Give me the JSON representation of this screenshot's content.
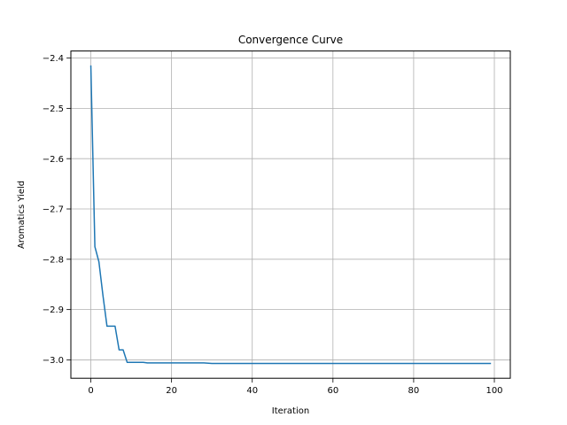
{
  "chart_data": {
    "type": "line",
    "title": "Convergence Curve",
    "xlabel": "Iteration",
    "ylabel": "Aromatics Yield",
    "xlim": [
      -4.95,
      103.95
    ],
    "ylim": [
      -3.0365,
      -2.386
    ],
    "xticks": [
      0,
      20,
      40,
      60,
      80,
      100
    ],
    "xtick_labels": [
      "0",
      "20",
      "40",
      "60",
      "80",
      "100"
    ],
    "yticks": [
      -3.0,
      -2.9,
      -2.8,
      -2.7,
      -2.6,
      -2.5,
      -2.4
    ],
    "ytick_labels": [
      "−3.0",
      "−2.9",
      "−2.8",
      "−2.7",
      "−2.6",
      "−2.5",
      "−2.4"
    ],
    "grid": true,
    "series": [
      {
        "color": "#1f77b4",
        "x": [
          0,
          1,
          2,
          3,
          4,
          5,
          6,
          7,
          8,
          9,
          10,
          11,
          12,
          13,
          14,
          15,
          20,
          28,
          30,
          40,
          60,
          80,
          99
        ],
        "y": [
          -2.416,
          -2.775,
          -2.805,
          -2.872,
          -2.933,
          -2.933,
          -2.933,
          -2.98,
          -2.98,
          -3.005,
          -3.005,
          -3.005,
          -3.005,
          -3.005,
          -3.006,
          -3.006,
          -3.006,
          -3.006,
          -3.007,
          -3.007,
          -3.007,
          -3.007,
          -3.007
        ]
      }
    ]
  }
}
